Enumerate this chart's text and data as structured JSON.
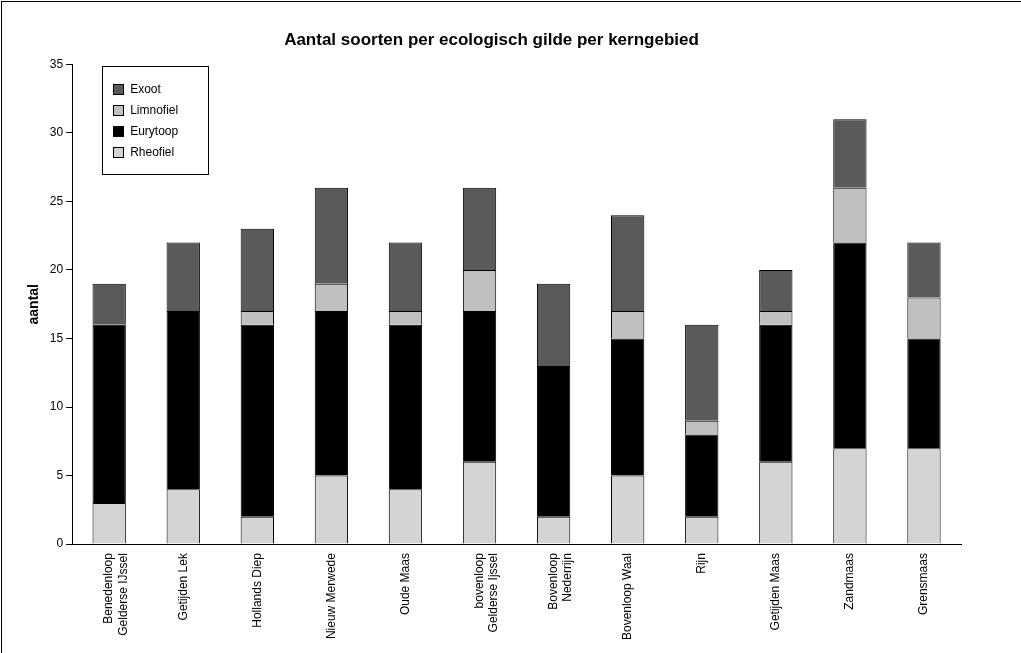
{
  "chart_data": {
    "type": "bar",
    "title": "Aantal soorten per ecologisch gilde per kerngebied",
    "ylabel": "aantal",
    "stacked": true,
    "legend": "top left",
    "grid": false,
    "categories": [
      "Benedenloop Gelderse IJssel",
      "Getijden Lek",
      "Hollands Diep",
      "Nieuw Merwede",
      "Oude Maas",
      "bovenloop Gelderse Ijssel",
      "Bovenloop Nederrijn",
      "Bovenloop Waal",
      "Rijn",
      "Getijden Maas",
      "Zandmaas",
      "Grensmaas"
    ],
    "ylim": [
      0,
      35
    ],
    "yticks": [
      0,
      5,
      10,
      15,
      20,
      25,
      30,
      35
    ],
    "series": [
      {
        "name": "Rheofiel",
        "color": "#d4d4d4",
        "values": [
          3,
          4,
          2,
          5,
          4,
          6,
          2,
          5,
          2,
          6,
          7,
          7
        ]
      },
      {
        "name": "Eurytoop",
        "color": "#000000",
        "values": [
          13,
          13,
          14,
          12,
          12,
          11,
          11,
          10,
          6,
          10,
          15,
          8
        ]
      },
      {
        "name": "Limnofiel",
        "color": "#c0c0c0",
        "values": [
          0,
          0,
          1,
          2,
          1,
          3,
          0,
          2,
          1,
          1,
          4,
          3
        ]
      },
      {
        "name": "Exoot",
        "color": "#5a5a5a",
        "values": [
          3,
          5,
          6,
          7,
          5,
          6,
          6,
          7,
          7,
          3,
          5,
          4
        ]
      }
    ]
  }
}
